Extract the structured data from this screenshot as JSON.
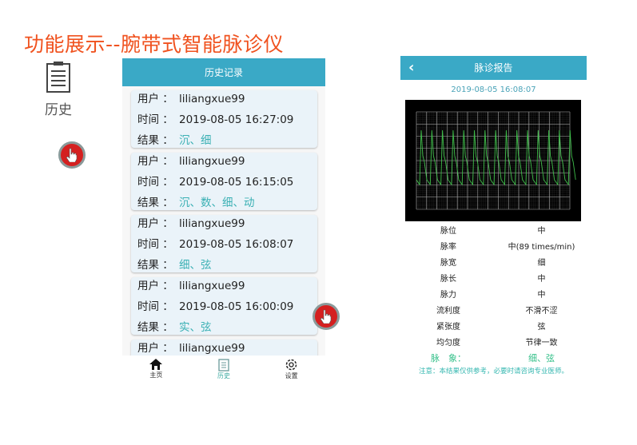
{
  "title": "功能展示--腕带式智能脉诊仪",
  "side_label": "历史",
  "history": {
    "header": "历史记录",
    "labels": {
      "user": "用户 ：",
      "time": "时间 ：",
      "result": "结果 ："
    },
    "records": [
      {
        "user": "liliangxue99",
        "time": "2019-08-05 16:27:09",
        "result": "沉、细"
      },
      {
        "user": "liliangxue99",
        "time": "2019-08-05 16:15:05",
        "result": "沉、数、细、动"
      },
      {
        "user": "liliangxue99",
        "time": "2019-08-05 16:08:07",
        "result": "细、弦"
      },
      {
        "user": "liliangxue99",
        "time": "2019-08-05 16:00:09",
        "result": "实、弦"
      },
      {
        "user": "liliangxue99",
        "time": "",
        "result": ""
      }
    ],
    "nav": [
      {
        "label": "主页",
        "icon": "home-icon"
      },
      {
        "label": "历史",
        "icon": "clipboard-icon",
        "active": true
      },
      {
        "label": "设置",
        "icon": "gear-icon"
      }
    ]
  },
  "report": {
    "header": "脉诊报告",
    "date": "2019-08-05 16:08:07",
    "rows": [
      {
        "k": "脉位",
        "v": "中"
      },
      {
        "k": "脉率",
        "v": "中(89 times/min)"
      },
      {
        "k": "脉宽",
        "v": "细"
      },
      {
        "k": "脉长",
        "v": "中"
      },
      {
        "k": "脉力",
        "v": "中"
      },
      {
        "k": "流利度",
        "v": "不滑不涩"
      },
      {
        "k": "紧张度",
        "v": "弦"
      },
      {
        "k": "均匀度",
        "v": "节律一致"
      }
    ],
    "summary_label": "脉　象：",
    "summary_value": "细、弦",
    "note": "注意：本结果仅供参考，必要时请咨询专业医师。"
  },
  "colors": {
    "title": "#f0521f",
    "header": "#3aa9c6",
    "result": "#3ab0b4",
    "wave": "#3fbf4a"
  }
}
